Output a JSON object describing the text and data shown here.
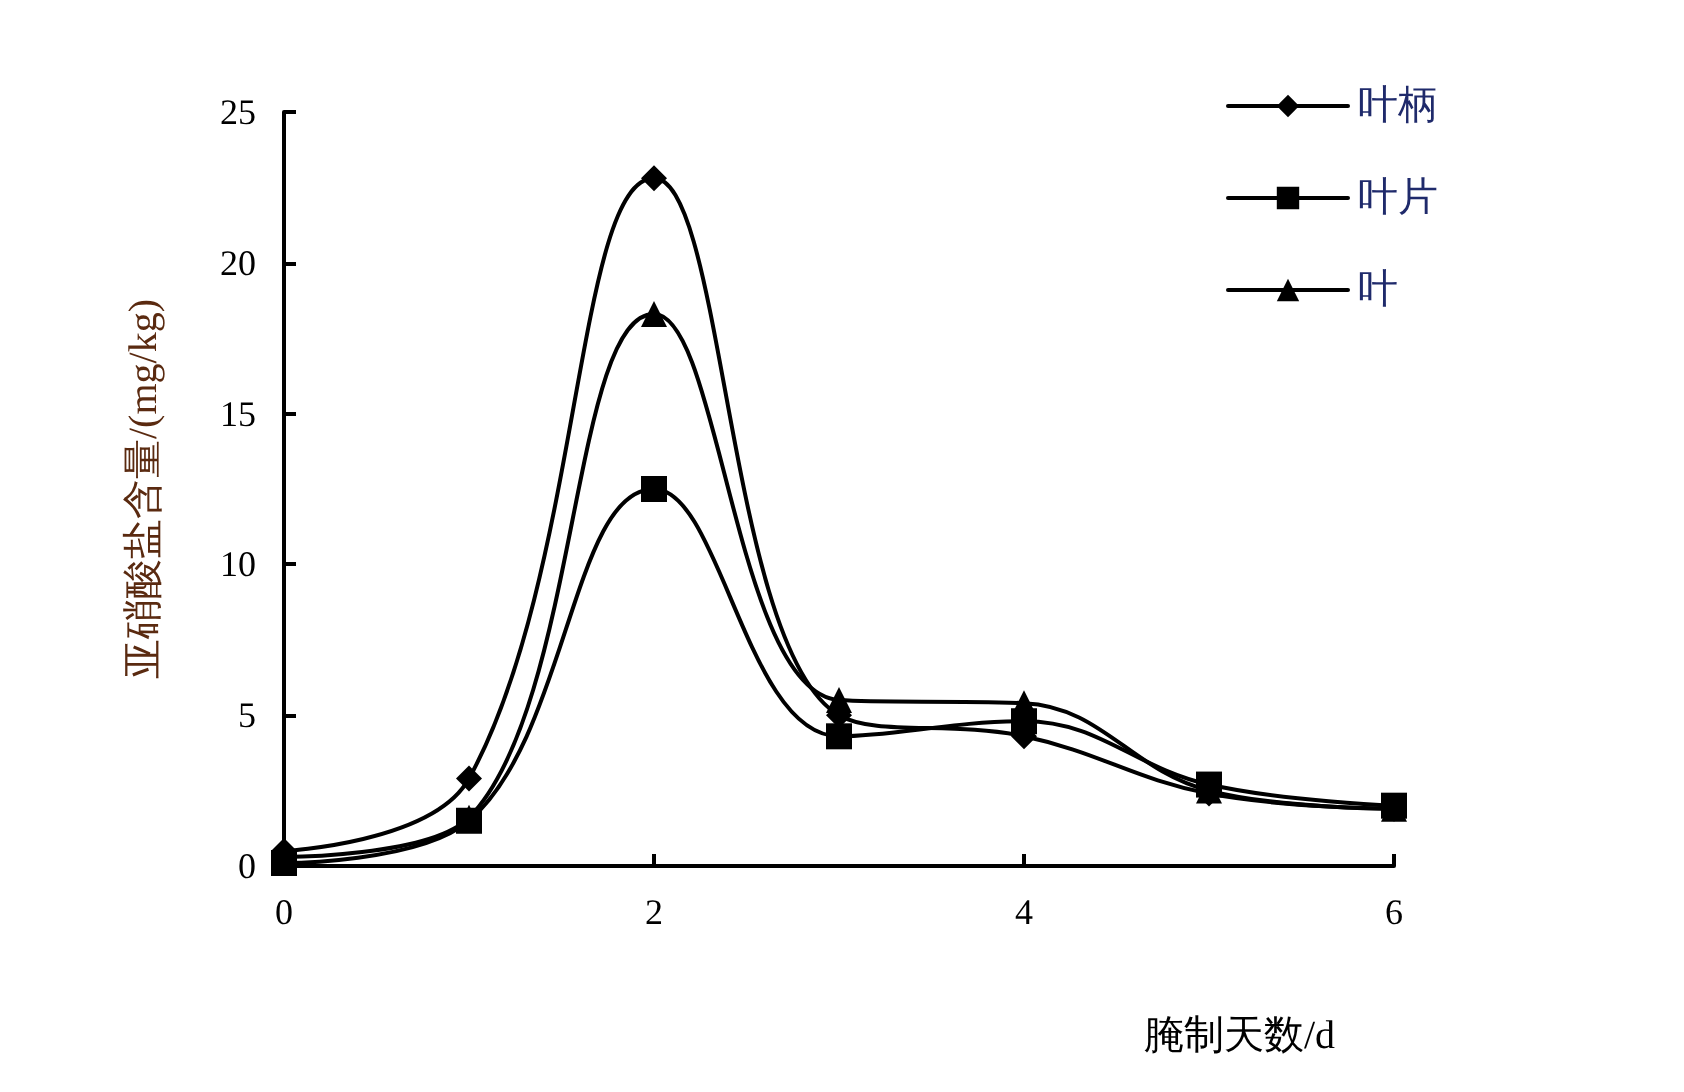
{
  "chart_data": {
    "type": "line",
    "xlabel": "腌制天数/d",
    "ylabel": "亚硝酸盐含量/(mg/kg)",
    "x": [
      0,
      1,
      2,
      3,
      4,
      5,
      6
    ],
    "xlim": [
      0,
      6
    ],
    "xticks": [
      0,
      2,
      4,
      6
    ],
    "ylim": [
      0,
      25
    ],
    "yticks": [
      0,
      5,
      10,
      15,
      20,
      25
    ],
    "grid": false,
    "legend": "top right",
    "line_style": "solid",
    "series": [
      {
        "name": "叶柄",
        "color": "#000000",
        "marker": "diamond",
        "values": [
          0.5,
          2.9,
          22.8,
          5.0,
          4.3,
          2.4,
          1.9
        ]
      },
      {
        "name": "叶片",
        "color": "#000000",
        "marker": "square",
        "values": [
          0.1,
          1.5,
          12.5,
          4.3,
          4.8,
          2.7,
          2.0
        ]
      },
      {
        "name": "叶",
        "color": "#000000",
        "marker": "triangle",
        "values": [
          0.3,
          1.6,
          18.3,
          5.5,
          5.4,
          2.5,
          1.9
        ]
      }
    ]
  }
}
